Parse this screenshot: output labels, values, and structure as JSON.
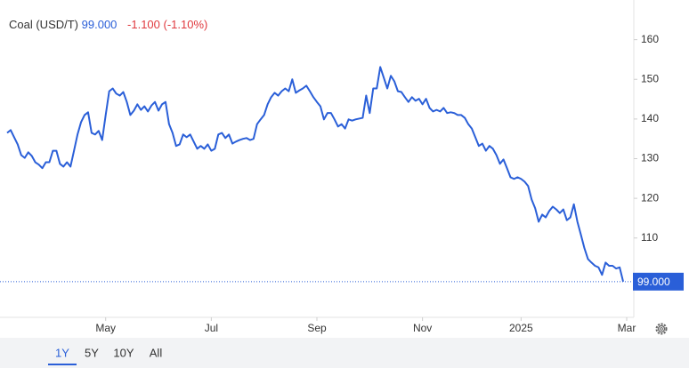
{
  "chart_data": {
    "type": "line",
    "price": "99.000",
    "change": "-1.100 (-1.10%)",
    "series": [
      {
        "name": "Coal (USD/T)",
        "color": "#2a5fd8",
        "values": [
          136.5,
          137.2,
          135.4,
          133.6,
          130.9,
          130.2,
          131.6,
          130.7,
          129.1,
          128.5,
          127.6,
          129.1,
          129.1,
          132.0,
          132.0,
          128.7,
          128.0,
          129.1,
          128.0,
          132.0,
          136.1,
          139.2,
          141.0,
          141.7,
          136.5,
          136.1,
          137.0,
          134.7,
          141.0,
          147.0,
          147.7,
          146.4,
          145.9,
          146.8,
          144.3,
          141.0,
          142.1,
          143.7,
          142.3,
          143.2,
          141.9,
          143.4,
          144.3,
          142.1,
          143.7,
          144.3,
          138.7,
          136.5,
          133.2,
          133.6,
          136.1,
          135.4,
          136.1,
          134.3,
          132.5,
          133.2,
          132.5,
          133.6,
          132.0,
          132.5,
          136.1,
          136.5,
          135.2,
          136.1,
          133.8,
          134.3,
          134.7,
          135.0,
          135.2,
          134.7,
          135.0,
          138.7,
          139.9,
          141.0,
          143.7,
          145.5,
          146.6,
          145.9,
          147.0,
          147.7,
          147.0,
          150.0,
          146.6,
          147.2,
          147.7,
          148.4,
          147.0,
          145.5,
          144.3,
          143.2,
          139.9,
          141.5,
          141.5,
          139.9,
          138.1,
          138.7,
          137.6,
          139.9,
          139.6,
          139.9,
          140.1,
          140.3,
          145.9,
          141.5,
          147.7,
          147.7,
          153.1,
          150.4,
          147.7,
          150.9,
          149.5,
          147.0,
          146.8,
          145.5,
          144.3,
          145.5,
          144.6,
          145.1,
          143.7,
          145.1,
          142.8,
          141.9,
          142.3,
          141.9,
          142.8,
          141.5,
          141.7,
          141.5,
          141.0,
          141.0,
          140.3,
          138.7,
          137.6,
          135.4,
          133.2,
          133.8,
          132.0,
          133.2,
          132.5,
          130.9,
          128.7,
          129.8,
          127.6,
          125.3,
          124.9,
          125.3,
          124.9,
          124.2,
          123.1,
          119.7,
          117.5,
          114.1,
          115.9,
          115.2,
          116.8,
          117.9,
          117.2,
          116.3,
          117.2,
          114.5,
          115.2,
          118.5,
          114.1,
          110.8,
          107.4,
          104.7,
          103.8,
          103.0,
          102.6,
          100.7,
          103.8,
          103.0,
          103.0,
          102.3,
          102.6,
          99.0
        ]
      }
    ],
    "xlim": [
      0,
      176
    ],
    "xticks": [
      {
        "value": 28,
        "label": "May"
      },
      {
        "value": 58,
        "label": "Jul"
      },
      {
        "value": 88,
        "label": "Sep"
      },
      {
        "value": 118,
        "label": "Nov"
      },
      {
        "value": 146,
        "label": "2025"
      },
      {
        "value": 176,
        "label": "Mar"
      }
    ],
    "ylim": [
      90,
      170
    ],
    "yticks": [
      110,
      120,
      130,
      140,
      150,
      160
    ],
    "grid": false,
    "ranges": [
      "1Y",
      "5Y",
      "10Y",
      "All"
    ],
    "selected_range": "1Y"
  }
}
